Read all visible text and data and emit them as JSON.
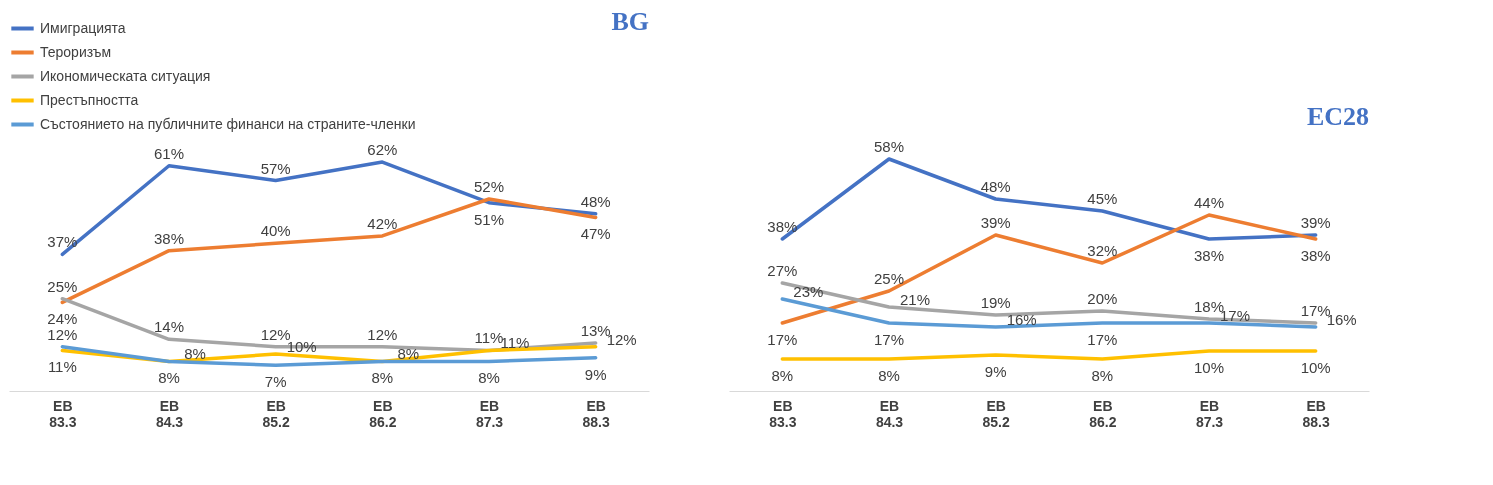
{
  "chart_data": [
    {
      "type": "line",
      "title": "BG",
      "categories": [
        "EB 83.3",
        "EB 84.3",
        "EB 85.2",
        "EB 86.2",
        "EB 87.3",
        "EB 88.3"
      ],
      "legend": "top left",
      "line_style": "solid",
      "marker": "none",
      "grid": false,
      "series": [
        {
          "name": "Имиграцията",
          "color": "#4472c4",
          "values": [
            37,
            61,
            57,
            62,
            51,
            48
          ],
          "value_labels": [
            "37%",
            "61%",
            "57%",
            "62%",
            "51%",
            "48%"
          ]
        },
        {
          "name": "Тероризъм",
          "color": "#ed7d31",
          "values": [
            24,
            38,
            40,
            42,
            52,
            47
          ],
          "value_labels": [
            "24%",
            "38%",
            "40%",
            "42%",
            "52%",
            "47%"
          ]
        },
        {
          "name": "Икономическата ситуация",
          "color": "#a5a5a5",
          "values": [
            25,
            14,
            12,
            12,
            11,
            13
          ],
          "value_labels": [
            "25%",
            "14%",
            "12%",
            "12%",
            "11%",
            "13%"
          ]
        },
        {
          "name": "Престъпността",
          "color": "#ffc000",
          "values": [
            11,
            8,
            10,
            8,
            11,
            12
          ],
          "value_labels": [
            "11%",
            "8%",
            "10%",
            "8%",
            "11%",
            "12%"
          ]
        },
        {
          "name": "Състоянието на публичните финанси на страните-членки",
          "color": "#5b9bd5",
          "values": [
            12,
            8,
            7,
            8,
            8,
            9
          ],
          "value_labels": [
            "12%",
            "8%",
            "7%",
            "8%",
            "8%",
            "9%"
          ]
        }
      ]
    },
    {
      "type": "line",
      "title": "EC28",
      "categories": [
        "EB 83.3",
        "EB 84.3",
        "EB 85.2",
        "EB 86.2",
        "EB 87.3",
        "EB 88.3"
      ],
      "legend": false,
      "line_style": "solid",
      "marker": "none",
      "grid": false,
      "series": [
        {
          "color": "#4472c4",
          "values": [
            38,
            58,
            48,
            45,
            38,
            39
          ],
          "value_labels": [
            "38%",
            "58%",
            "48%",
            "45%",
            "38%",
            "39%"
          ]
        },
        {
          "color": "#ed7d31",
          "values": [
            17,
            25,
            39,
            32,
            44,
            38
          ],
          "value_labels": [
            "17%",
            "25%",
            "39%",
            "32%",
            "44%",
            "38%"
          ]
        },
        {
          "color": "#a5a5a5",
          "values": [
            27,
            21,
            19,
            20,
            18,
            17
          ],
          "value_labels": [
            "27%",
            "21%",
            "19%",
            "20%",
            "18%",
            "17%"
          ]
        },
        {
          "color": "#ffc000",
          "values": [
            8,
            8,
            9,
            8,
            10,
            10
          ],
          "value_labels": [
            "8%",
            "8%",
            "9%",
            "8%",
            "10%",
            "10%"
          ]
        },
        {
          "color": "#5b9bd5",
          "values": [
            23,
            17,
            16,
            17,
            17,
            16
          ],
          "value_labels": [
            "23%",
            "17%",
            "16%",
            "17%",
            "17%",
            "16%"
          ]
        }
      ]
    }
  ]
}
